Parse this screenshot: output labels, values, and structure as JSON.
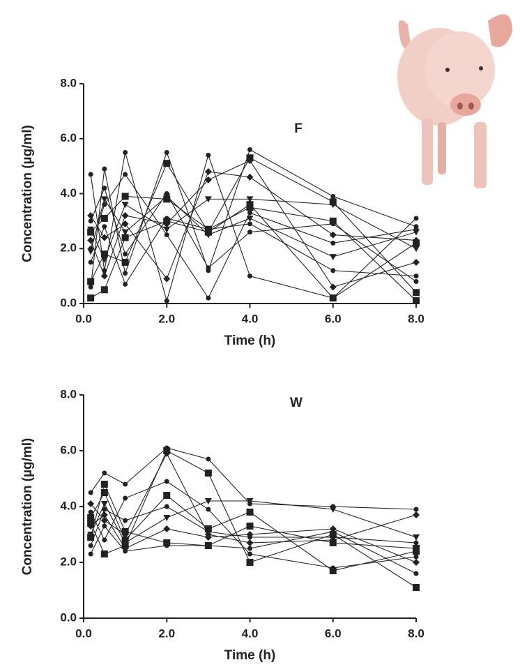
{
  "chart_data": [
    {
      "type": "line",
      "title": "F",
      "xlabel": "Time (h)",
      "ylabel": "Concentration (µg/ml)",
      "x": [
        0.17,
        0.5,
        1,
        2,
        3,
        4,
        6,
        8
      ],
      "xlim": [
        0,
        8
      ],
      "ylim": [
        0,
        8
      ],
      "xticks": [
        {
          "value": 0,
          "label": "0.0"
        },
        {
          "value": 2,
          "label": "2.0"
        },
        {
          "value": 4,
          "label": "4.0"
        },
        {
          "value": 6,
          "label": "6.0"
        },
        {
          "value": 8,
          "label": "8.0"
        }
      ],
      "yticks": [
        {
          "value": 0,
          "label": "0.0"
        },
        {
          "value": 2,
          "label": "2.0"
        },
        {
          "value": 4,
          "label": "4.0"
        },
        {
          "value": 6,
          "label": "6.0"
        },
        {
          "value": 8,
          "label": "8.0"
        }
      ],
      "series": [
        {
          "color": "#222222",
          "marker": "circle",
          "values": [
            4.7,
            1.2,
            5.5,
            0.1,
            5.4,
            1.0,
            0.2,
            3.1
          ]
        },
        {
          "color": "#222222",
          "marker": "circle",
          "values": [
            0.6,
            4.9,
            1.1,
            5.5,
            1.2,
            5.6,
            3.9,
            2.8
          ]
        },
        {
          "color": "#222222",
          "marker": "square",
          "values": [
            2.6,
            3.1,
            3.9,
            3.8,
            2.7,
            3.5,
            3.0,
            0.1
          ]
        },
        {
          "color": "#222222",
          "marker": "square",
          "values": [
            0.8,
            1.8,
            1.5,
            5.1,
            2.6,
            5.3,
            3.7,
            0.4
          ]
        },
        {
          "color": "#222222",
          "marker": "diamond",
          "values": [
            3.2,
            2.4,
            2.9,
            0.9,
            4.8,
            4.6,
            2.5,
            2.3
          ]
        },
        {
          "color": "#222222",
          "marker": "triangle",
          "values": [
            1.9,
            3.8,
            2.6,
            3.9,
            2.5,
            3.1,
            1.7,
            2.6
          ]
        },
        {
          "color": "#222222",
          "marker": "diamond",
          "values": [
            2.3,
            1.0,
            3.2,
            2.9,
            4.5,
            5.2,
            0.6,
            1.5
          ]
        },
        {
          "color": "#222222",
          "marker": "circle",
          "values": [
            1.5,
            2.8,
            0.7,
            3.1,
            2.7,
            2.9,
            1.2,
            1.0
          ]
        },
        {
          "color": "#222222",
          "marker": "circle",
          "values": [
            2.0,
            3.6,
            4.7,
            2.5,
            0.2,
            3.3,
            2.2,
            2.7
          ]
        },
        {
          "color": "#222222",
          "marker": "square",
          "values": [
            0.2,
            0.5,
            2.4,
            3.0,
            2.6,
            3.6,
            0.2,
            2.2
          ]
        },
        {
          "color": "#222222",
          "marker": "circle",
          "values": [
            3.0,
            4.2,
            1.8,
            4.0,
            1.3,
            2.6,
            2.9,
            0.8
          ]
        },
        {
          "color": "#222222",
          "marker": "triangle",
          "values": [
            2.7,
            1.6,
            3.6,
            2.7,
            3.8,
            3.8,
            3.6,
            2.0
          ]
        }
      ]
    },
    {
      "type": "line",
      "title": "W",
      "xlabel": "Time (h)",
      "ylabel": "Concentration (µg/ml)",
      "x": [
        0.17,
        0.5,
        1,
        2,
        3,
        4,
        6,
        8
      ],
      "xlim": [
        0,
        8
      ],
      "ylim": [
        0,
        8
      ],
      "xticks": [
        {
          "value": 0,
          "label": "0.0"
        },
        {
          "value": 2,
          "label": "2.0"
        },
        {
          "value": 4,
          "label": "4.0"
        },
        {
          "value": 6,
          "label": "6.0"
        },
        {
          "value": 8,
          "label": "8.0"
        }
      ],
      "yticks": [
        {
          "value": 0,
          "label": "0.0"
        },
        {
          "value": 2,
          "label": "2.0"
        },
        {
          "value": 4,
          "label": "4.0"
        },
        {
          "value": 6,
          "label": "6.0"
        },
        {
          "value": 8,
          "label": "8.0"
        }
      ],
      "series": [
        {
          "color": "#222222",
          "marker": "circle",
          "values": [
            4.5,
            5.2,
            4.8,
            6.1,
            5.7,
            4.1,
            4.0,
            3.9
          ]
        },
        {
          "color": "#222222",
          "marker": "square",
          "values": [
            3.4,
            2.3,
            2.6,
            6.0,
            5.2,
            2.0,
            3.0,
            1.1
          ]
        },
        {
          "color": "#222222",
          "marker": "square",
          "values": [
            3.6,
            4.5,
            2.8,
            4.4,
            3.2,
            3.8,
            1.7,
            2.4
          ]
        },
        {
          "color": "#222222",
          "marker": "circle",
          "values": [
            2.3,
            3.3,
            2.4,
            2.6,
            2.6,
            2.5,
            3.1,
            1.6
          ]
        },
        {
          "color": "#222222",
          "marker": "diamond",
          "values": [
            4.1,
            3.5,
            3.0,
            5.9,
            3.0,
            2.7,
            2.8,
            3.7
          ]
        },
        {
          "color": "#222222",
          "marker": "triangle",
          "values": [
            3.0,
            4.1,
            2.7,
            3.6,
            4.2,
            4.2,
            3.9,
            2.9
          ]
        },
        {
          "color": "#222222",
          "marker": "circle",
          "values": [
            2.6,
            3.9,
            3.5,
            4.0,
            3.1,
            2.9,
            2.9,
            2.7
          ]
        },
        {
          "color": "#222222",
          "marker": "circle",
          "values": [
            3.8,
            2.8,
            4.3,
            4.9,
            3.9,
            2.3,
            1.8,
            2.2
          ]
        },
        {
          "color": "#222222",
          "marker": "diamond",
          "values": [
            3.3,
            3.7,
            2.5,
            3.2,
            2.9,
            3.0,
            3.2,
            2.0
          ]
        },
        {
          "color": "#222222",
          "marker": "square",
          "values": [
            2.9,
            4.8,
            3.1,
            2.7,
            2.6,
            3.3,
            2.7,
            2.5
          ]
        }
      ]
    }
  ]
}
